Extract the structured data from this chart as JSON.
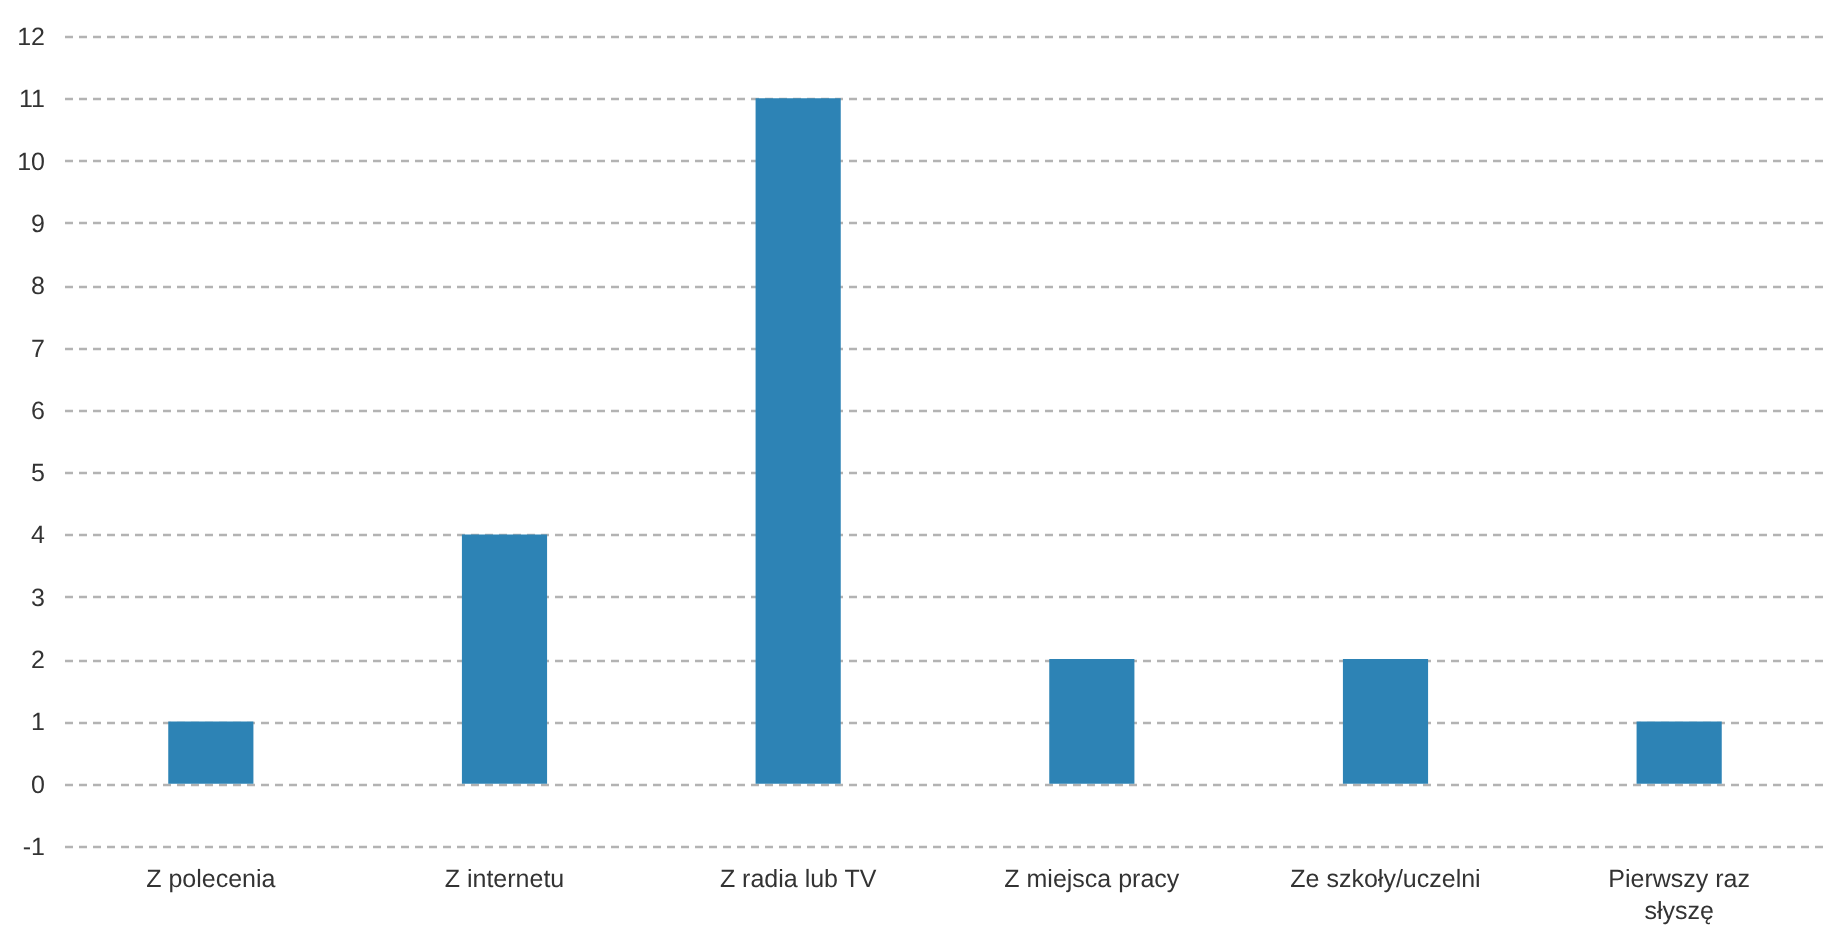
{
  "chart_data": {
    "type": "bar",
    "categories": [
      "Z polecenia",
      "Z internetu",
      "Z radia lub TV",
      "Z miejsca pracy",
      "Ze szkoły/uczelni",
      "Pierwszy raz słyszę"
    ],
    "values": [
      1,
      4,
      11,
      2,
      2,
      1
    ],
    "color": "#2d83b5",
    "ylim": [
      -1,
      12
    ],
    "yticks": [
      -1,
      0,
      1,
      2,
      3,
      4,
      5,
      6,
      7,
      8,
      9,
      10,
      11,
      12
    ],
    "grid": "y"
  }
}
